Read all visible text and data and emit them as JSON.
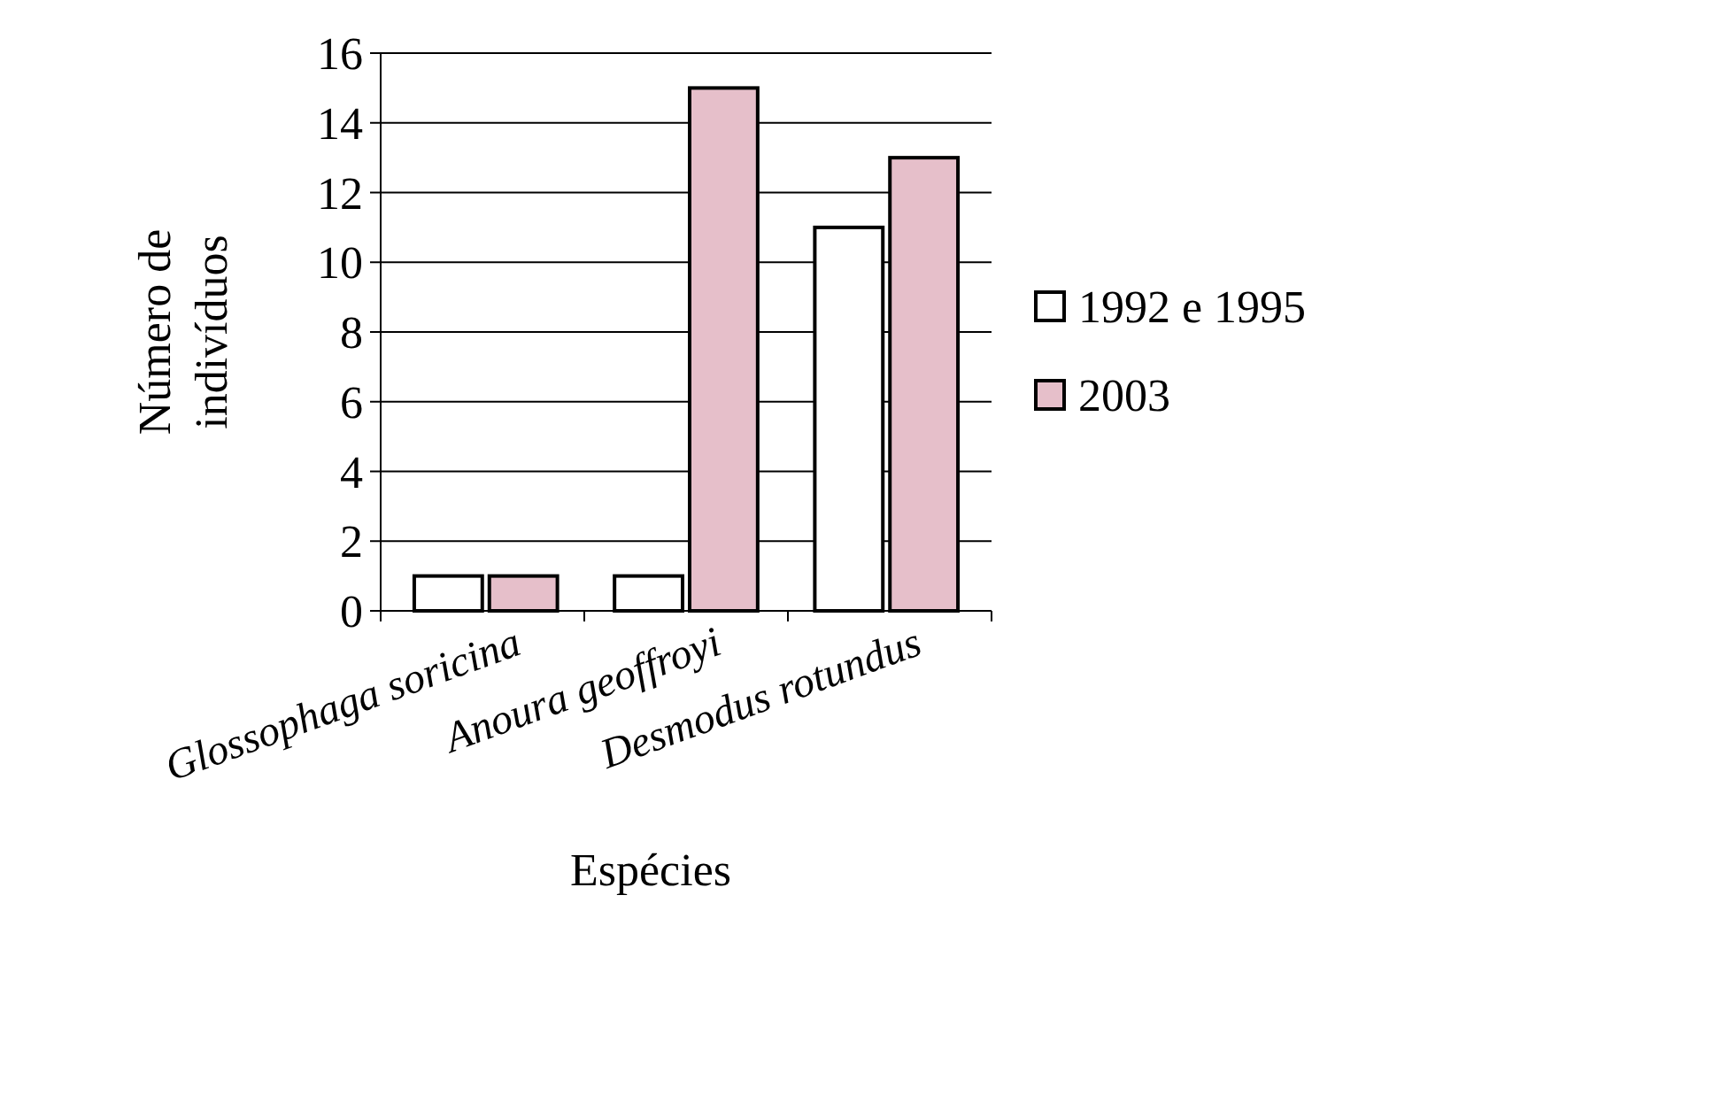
{
  "chart_data": {
    "type": "bar",
    "xlabel": "Espécies",
    "ylabel": "Número de indivíduos",
    "categories": [
      "Glossophaga soricina",
      "Anoura geoffroyi",
      "Desmodus rotundus"
    ],
    "series": [
      {
        "name": "1992 e 1995",
        "color": "#ffffff",
        "values": [
          1,
          1,
          11
        ]
      },
      {
        "name": "2003",
        "color": "#e6bfca",
        "values": [
          1,
          15,
          13
        ]
      }
    ],
    "ylim": [
      0,
      16
    ],
    "yticks": [
      0,
      2,
      4,
      6,
      8,
      10,
      12,
      14,
      16
    ],
    "grid": "y",
    "legend": "right"
  }
}
